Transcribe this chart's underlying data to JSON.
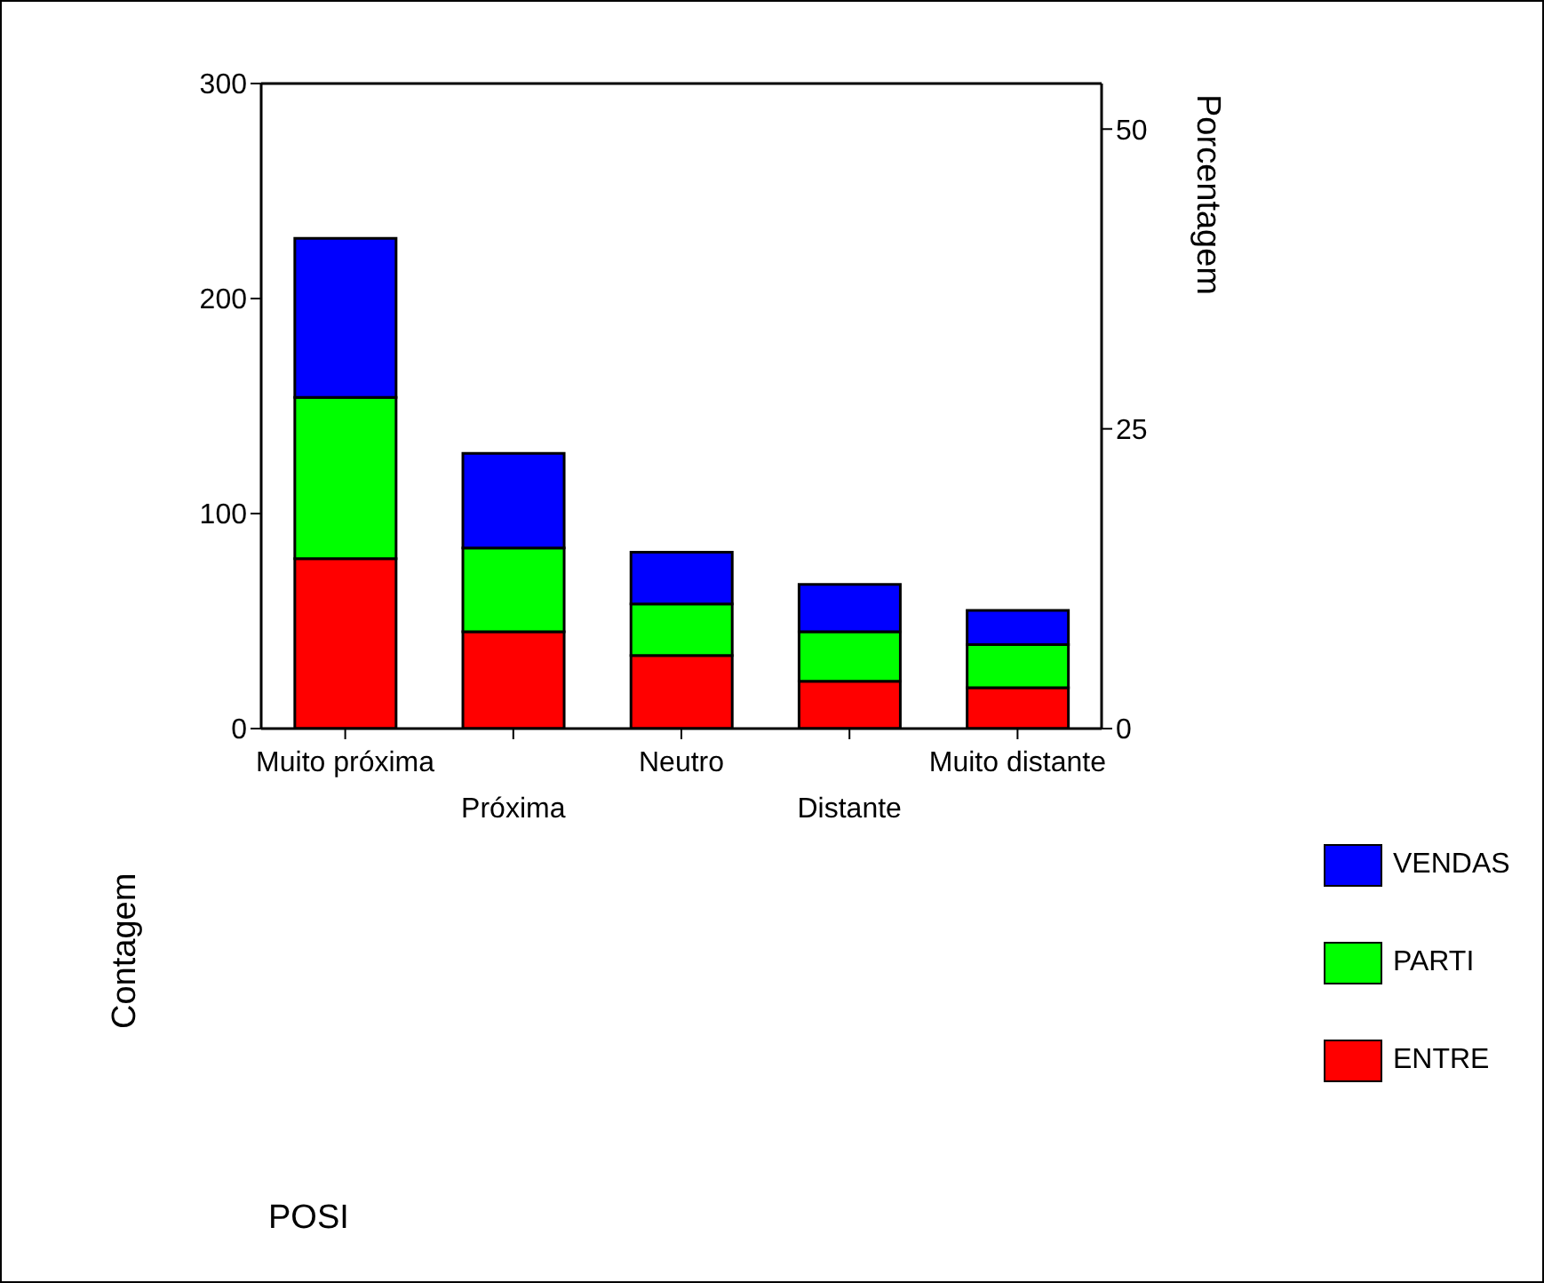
{
  "chart_data": {
    "type": "bar",
    "stacked": true,
    "annotations": [
      "POSI"
    ],
    "ylabel": "Contagem",
    "y2label": "Porcentagem",
    "categories": [
      "Muito próxima",
      "Próxima",
      "Neutro",
      "Distante",
      "Muito distante"
    ],
    "series": [
      {
        "name": "ENTRE",
        "color": "#ff0000",
        "values": [
          79,
          45,
          34,
          22,
          19
        ]
      },
      {
        "name": "PARTI",
        "color": "#00ff00",
        "values": [
          75,
          39,
          24,
          23,
          20
        ]
      },
      {
        "name": "VENDAS",
        "color": "#0000ff",
        "values": [
          74,
          44,
          24,
          22,
          16
        ]
      }
    ],
    "ylim": [
      0,
      300
    ],
    "yticks": [
      0,
      100,
      200,
      300
    ],
    "y2lim": [
      0,
      53.8
    ],
    "y2ticks": [
      0,
      25,
      50
    ],
    "legend": "right"
  }
}
